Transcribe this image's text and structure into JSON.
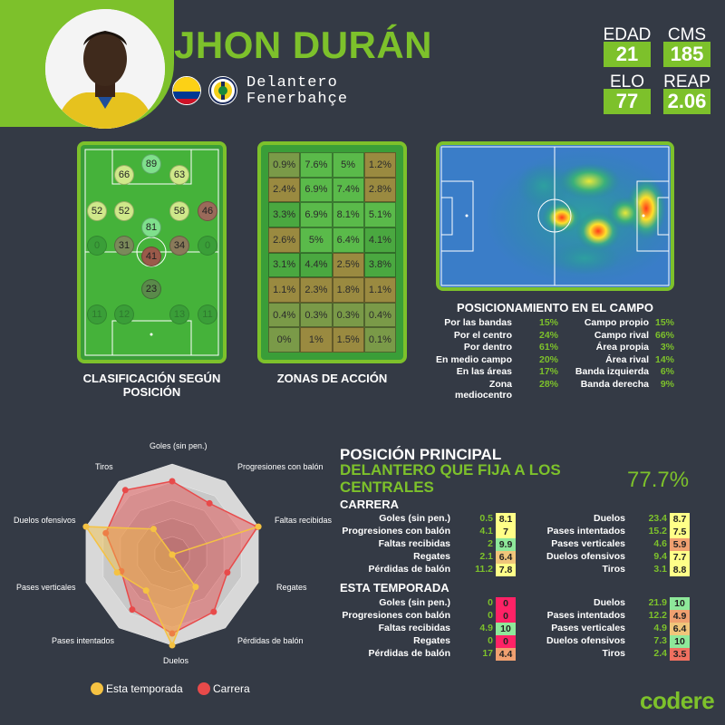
{
  "player": {
    "name": "JHON DURÁN",
    "position": "Delantero",
    "club": "Fenerbahçe"
  },
  "stats": [
    {
      "label": "EDAD",
      "value": "21"
    },
    {
      "label": "CMS",
      "value": "185"
    },
    {
      "label": "ELO",
      "value": "77"
    },
    {
      "label": "REAP",
      "value": "2.06"
    }
  ],
  "captions": {
    "clasificacion": "CLASIFICACIÓN SEGÚN POSICIÓN",
    "zonas": "ZONAS DE ACCIÓN",
    "posicionamiento": "POSICIONAMIENTO EN EL CAMPO"
  },
  "position_ratings": [
    "89",
    "66",
    "63",
    "52",
    "52",
    "58",
    "46",
    "81",
    "31",
    "41",
    "34",
    "23"
  ],
  "zones": [
    "0.9%",
    "7.6%",
    "5%",
    "1.2%",
    "2.4%",
    "6.9%",
    "7.4%",
    "2.8%",
    "3.3%",
    "6.9%",
    "8.1%",
    "5.1%",
    "2.6%",
    "5%",
    "6.4%",
    "4.1%",
    "3.1%",
    "4.4%",
    "2.5%",
    "3.8%",
    "1.1%",
    "2.3%",
    "1.8%",
    "1.1%",
    "0.4%",
    "0.3%",
    "0.3%",
    "0.4%",
    "0%",
    "1%",
    "1.5%",
    "0.1%"
  ],
  "positioning": {
    "left": [
      {
        "label": "Por las bandas",
        "value": "15%"
      },
      {
        "label": "Por el centro",
        "value": "24%"
      },
      {
        "label": "Por dentro",
        "value": "61%"
      },
      {
        "label": "En medio campo",
        "value": "20%"
      },
      {
        "label": "En las áreas",
        "value": "17%"
      },
      {
        "label": "Zona mediocentro",
        "value": "28%"
      }
    ],
    "right": [
      {
        "label": "Campo propio",
        "value": "15%"
      },
      {
        "label": "Campo rival",
        "value": "66%"
      },
      {
        "label": "Área propia",
        "value": "3%"
      },
      {
        "label": "Área rival",
        "value": "14%"
      },
      {
        "label": "Banda izquierda",
        "value": "6%"
      },
      {
        "label": "Banda derecha",
        "value": "9%"
      }
    ]
  },
  "main_position": {
    "title": "POSICIÓN PRINCIPAL",
    "role": "DELANTERO QUE FIJA A LOS CENTRALES",
    "score": "77.7%"
  },
  "career": {
    "title": "CARRERA",
    "left": [
      {
        "label": "Goles (sin pen.)",
        "value": "0.5",
        "rank": "8.1",
        "color": "#ffff88"
      },
      {
        "label": "Progresiones con balón",
        "value": "4.1",
        "rank": "7",
        "color": "#ffff88"
      },
      {
        "label": "Faltas recibidas",
        "value": "2",
        "rank": "9.9",
        "color": "#8ee89a"
      },
      {
        "label": "Regates",
        "value": "2.1",
        "rank": "6.4",
        "color": "#f0c57a"
      },
      {
        "label": "Pérdidas de balón",
        "value": "11.2",
        "rank": "7.8",
        "color": "#ffff88"
      }
    ],
    "right": [
      {
        "label": "Duelos",
        "value": "23.4",
        "rank": "8.7",
        "color": "#ffff88"
      },
      {
        "label": "Pases intentados",
        "value": "15.2",
        "rank": "7.5",
        "color": "#ffff88"
      },
      {
        "label": "Pases verticales",
        "value": "4.6",
        "rank": "5.9",
        "color": "#f0a070"
      },
      {
        "label": "Duelos ofensivos",
        "value": "9.4",
        "rank": "7.7",
        "color": "#ffff88"
      },
      {
        "label": "Tiros",
        "value": "3.1",
        "rank": "8.8",
        "color": "#ffff88"
      }
    ]
  },
  "season": {
    "title": "ESTA TEMPORADA",
    "left": [
      {
        "label": "Goles (sin pen.)",
        "value": "0",
        "rank": "0",
        "color": "#ff2266"
      },
      {
        "label": "Progresiones con balón",
        "value": "0",
        "rank": "0",
        "color": "#ff2266"
      },
      {
        "label": "Faltas recibidas",
        "value": "4.9",
        "rank": "10",
        "color": "#8ee89a"
      },
      {
        "label": "Regates",
        "value": "0",
        "rank": "0",
        "color": "#ff2266"
      },
      {
        "label": "Pérdidas de balón",
        "value": "17",
        "rank": "4.4",
        "color": "#f0a070"
      }
    ],
    "right": [
      {
        "label": "Duelos",
        "value": "21.9",
        "rank": "10",
        "color": "#8ee89a"
      },
      {
        "label": "Pases intentados",
        "value": "12.2",
        "rank": "4.9",
        "color": "#f0a070"
      },
      {
        "label": "Pases verticales",
        "value": "4.9",
        "rank": "6.4",
        "color": "#f0c57a"
      },
      {
        "label": "Duelos ofensivos",
        "value": "7.3",
        "rank": "10",
        "color": "#8ee89a"
      },
      {
        "label": "Tiros",
        "value": "2.4",
        "rank": "3.5",
        "color": "#f07060"
      }
    ]
  },
  "radar": {
    "axes": [
      "Goles (sin pen.)",
      "Progresiones con balón",
      "Faltas recibidas",
      "Regates",
      "Pérdidas de balón",
      "Duelos",
      "Pases intentados",
      "Pases verticales",
      "Duelos ofensivos",
      "Tiros"
    ],
    "career": [
      8.1,
      7,
      9.9,
      6.4,
      7.8,
      8.7,
      7.5,
      5.9,
      7.7,
      8.8
    ],
    "season": [
      0,
      0,
      10,
      0,
      4.4,
      10,
      4.9,
      6.4,
      10,
      3.5
    ],
    "legend_season": "Esta temporada",
    "legend_career": "Carrera",
    "season_color": "#f5c242",
    "career_color": "#e84a4a"
  },
  "brand": "codere"
}
